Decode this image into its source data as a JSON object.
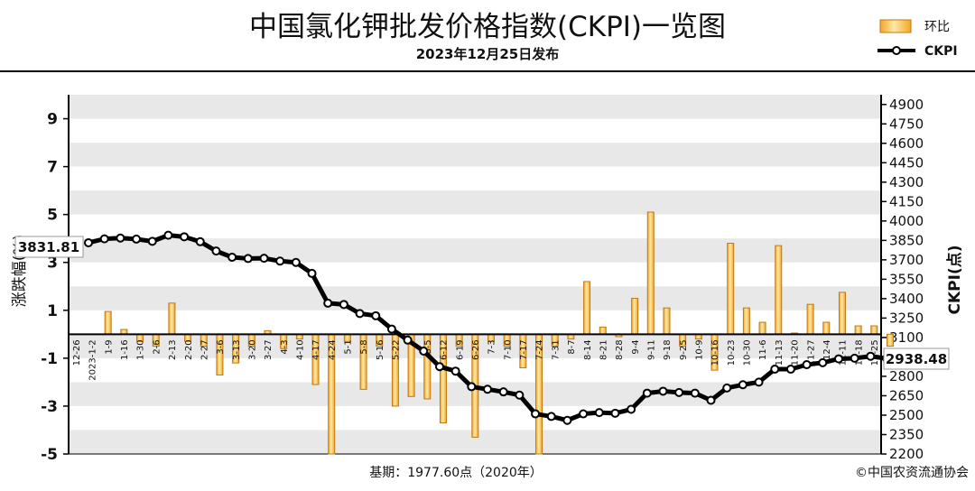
{
  "header": {
    "title": "中国氯化钾批发价格指数(CKPI)一览图",
    "subtitle": "2023年12月25日发布"
  },
  "footer": {
    "base_note": "基期：1977.60点（2020年）",
    "copyright": "©中国农资流通协会"
  },
  "colors": {
    "bar_fill_top": "#f5e6a3",
    "bar_fill_bottom": "#f0a020",
    "bar_stroke": "#c07818",
    "line": "#000000",
    "plot_band": "#e8e8e8"
  },
  "chart_data": {
    "type": "bar+line",
    "legend": {
      "placement": "top-right",
      "bar_label": "环比",
      "line_label": "CKPI"
    },
    "categories": [
      "12-26",
      "2023-1-2",
      "1-9",
      "1-16",
      "1-30",
      "2-6",
      "2-13",
      "2-20",
      "2-27",
      "3-6",
      "3-13",
      "3-20",
      "3-27",
      "4-3",
      "4-10",
      "4-17",
      "4-24",
      "5-1",
      "5-8",
      "5-16",
      "5-22",
      "5-29",
      "6-5",
      "6-12",
      "6-19",
      "6-26",
      "7-3",
      "7-10",
      "7-17",
      "7-24",
      "7-31",
      "8-7",
      "8-14",
      "8-21",
      "8-28",
      "9-4",
      "9-11",
      "9-18",
      "9-25",
      "10-9",
      "10-16",
      "10-23",
      "10-30",
      "11-6",
      "11-13",
      "11-20",
      "11-27",
      "12-4",
      "12-11",
      "12-18",
      "12-25"
    ],
    "tick_labels": [
      "12-26",
      "2023-1-2",
      "1-9",
      "1-16",
      "1-30",
      "2-6",
      "2-13",
      "2-20",
      "2-27",
      "3-6",
      "3-13",
      "3-20",
      "3-27",
      "4-3",
      "4-10",
      "4-17",
      "4-24",
      "5-1",
      "5-8",
      "5-16",
      "5-22",
      "",
      "6-5",
      "6-12",
      "6-19",
      "6-26",
      "7-3",
      "7-10",
      "7-17",
      "7-24",
      "7-31",
      "8-7",
      "8-14",
      "8-21",
      "8-28",
      "9-4",
      "9-11",
      "9-18",
      "9-25",
      "10-9",
      "10-16",
      "10-23",
      "10-30",
      "11-6",
      "11-13",
      "11-20",
      "11-27",
      "12-4",
      "12-11",
      "12-18",
      "12-25"
    ],
    "series": [
      {
        "name": "环比",
        "type": "bar",
        "axis": "left",
        "values": [
          0,
          0.95,
          0.2,
          -0.3,
          -0.5,
          1.3,
          -0.3,
          -0.5,
          -1.7,
          -1.2,
          -0.5,
          0.15,
          -0.6,
          -0.2,
          -2.1,
          -5.0,
          -0.3,
          -2.3,
          -0.5,
          -3.0,
          -2.6,
          -2.7,
          -3.7,
          -0.5,
          -4.3,
          -0.3,
          -0.5,
          -1.4,
          -5.0,
          -0.5,
          -0.2,
          2.2,
          0.3,
          -0.1,
          1.5,
          5.1,
          1.1,
          -0.5,
          -0.2,
          -1.5,
          3.8,
          1.1,
          0.5,
          3.7,
          0.05,
          1.25,
          0.5,
          1.75,
          0.35,
          0.35,
          -0.5
        ]
      },
      {
        "name": "CKPI",
        "type": "line",
        "axis": "right",
        "values": [
          3831.81,
          3862,
          3868,
          3860,
          3843,
          3890,
          3878,
          3840,
          3768,
          3720,
          3710,
          3712,
          3690,
          3680,
          3595,
          3365,
          3355,
          3285,
          3268,
          3165,
          3080,
          2995,
          2875,
          2840,
          2720,
          2700,
          2680,
          2655,
          2510,
          2490,
          2460,
          2510,
          2520,
          2515,
          2545,
          2670,
          2685,
          2675,
          2670,
          2615,
          2710,
          2735,
          2755,
          2855,
          2855,
          2890,
          2905,
          2935,
          2940,
          2955,
          2938.48
        ]
      }
    ],
    "first_point_label": "3831.81",
    "last_point_label": "2938.48",
    "left_axis": {
      "label": "涨跌幅(%)",
      "ylim": [
        -5,
        10
      ],
      "ticks": [
        9,
        7,
        5,
        3,
        1,
        -1,
        -3,
        -5
      ],
      "tick_labels": [
        "9",
        "7",
        "5",
        "3",
        "1",
        "-1",
        "-3",
        "-5"
      ]
    },
    "right_axis": {
      "label": "CKPI(点)",
      "ylim": [
        2200,
        4975
      ],
      "ticks": [
        2200,
        2350,
        2500,
        2650,
        2800,
        2950,
        3100,
        3250,
        3400,
        3550,
        3700,
        3850,
        4000,
        4150,
        4300,
        4450,
        4600,
        4750,
        4900
      ],
      "tick_labels": [
        "2200",
        "2350",
        "2500",
        "2650",
        "2800",
        "2950",
        "3100",
        "3250",
        "3400",
        "3550",
        "3700",
        "3850",
        "4000",
        "4150",
        "4300",
        "4450",
        "4600",
        "4750",
        "4900"
      ]
    },
    "grid": "horizontal bands"
  }
}
